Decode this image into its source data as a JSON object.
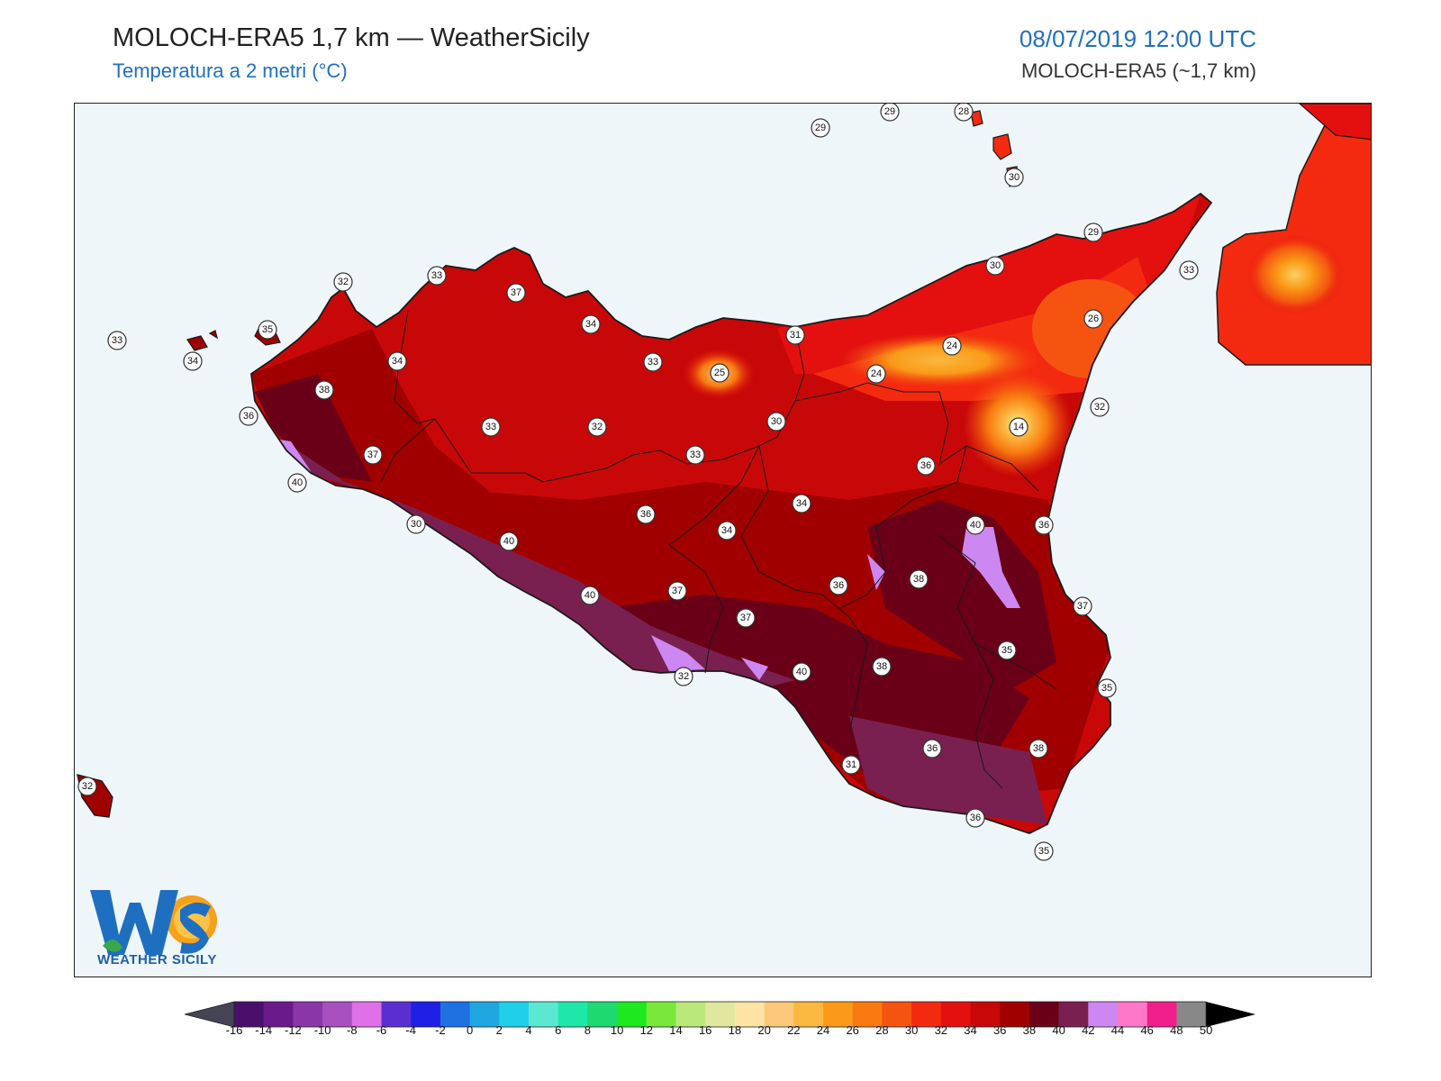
{
  "header": {
    "title": "MOLOCH-ERA5 1,7 km — WeatherSicily",
    "subtitle": "Temperatura a 2 metri (°C)",
    "datetime": "08/07/2019 12:00 UTC",
    "model": "MOLOCH-ERA5 (~1,7 km)"
  },
  "logo": {
    "text": "WEATHER SICILY",
    "mark": "WS"
  },
  "colors": {
    "sea": "#eef6fa",
    "outline": "#1a1a1a"
  },
  "colorbar": {
    "ticks": [
      "-16",
      "-14",
      "-12",
      "-10",
      "-8",
      "-6",
      "-4",
      "-2",
      "0",
      "2",
      "4",
      "6",
      "8",
      "10",
      "12",
      "14",
      "16",
      "18",
      "20",
      "22",
      "24",
      "26",
      "28",
      "30",
      "32",
      "34",
      "36",
      "38",
      "40",
      "42",
      "44",
      "46",
      "48",
      "50"
    ],
    "colors": [
      "#3a0a4a",
      "#4a0f6a",
      "#6a1a8a",
      "#8a35a8",
      "#a850c0",
      "#e070e8",
      "#5b2fcf",
      "#1f1fe6",
      "#1f70e0",
      "#1fa8e0",
      "#1fd0e8",
      "#5ce8d0",
      "#1ee8a8",
      "#1ed870",
      "#1ee81e",
      "#7ae83a",
      "#bbe87a",
      "#e0e8a0",
      "#fde3a4",
      "#fcc87a",
      "#fbb840",
      "#fa9a18",
      "#f87a10",
      "#f45410",
      "#f42a10",
      "#e41010",
      "#c80808",
      "#a00000",
      "#6a0018",
      "#7a2050",
      "#cc88f0",
      "#ff78c8",
      "#f01e8a",
      "#888888",
      "#444444"
    ]
  },
  "chart_data": {
    "type": "map",
    "title": "MOLOCH-ERA5 1,7 km — WeatherSicily",
    "variable": "Temperatura a 2 metri (°C)",
    "valid_time": "08/07/2019 12:00 UTC",
    "scale_min": -16,
    "scale_max": 50,
    "scale_step": 2,
    "station_values": [
      {
        "v": "29"
      },
      {
        "v": "29"
      },
      {
        "v": "28"
      },
      {
        "v": "30"
      },
      {
        "v": "29"
      },
      {
        "v": "30"
      },
      {
        "v": "33"
      },
      {
        "v": "33"
      },
      {
        "v": "37"
      },
      {
        "v": "32"
      },
      {
        "v": "34"
      },
      {
        "v": "33"
      },
      {
        "v": "35"
      },
      {
        "v": "34"
      },
      {
        "v": "34"
      },
      {
        "v": "38"
      },
      {
        "v": "36"
      },
      {
        "v": "37"
      },
      {
        "v": "40"
      },
      {
        "v": "33"
      },
      {
        "v": "33"
      },
      {
        "v": "25"
      },
      {
        "v": "31"
      },
      {
        "v": "24"
      },
      {
        "v": "24"
      },
      {
        "v": "26"
      },
      {
        "v": "32"
      },
      {
        "v": "14"
      },
      {
        "v": "32"
      },
      {
        "v": "30"
      },
      {
        "v": "33"
      },
      {
        "v": "36"
      },
      {
        "v": "34"
      },
      {
        "v": "36"
      },
      {
        "v": "34"
      },
      {
        "v": "30"
      },
      {
        "v": "40"
      },
      {
        "v": "40"
      },
      {
        "v": "36"
      },
      {
        "v": "40"
      },
      {
        "v": "37"
      },
      {
        "v": "36"
      },
      {
        "v": "38"
      },
      {
        "v": "37"
      },
      {
        "v": "37"
      },
      {
        "v": "35"
      },
      {
        "v": "32"
      },
      {
        "v": "40"
      },
      {
        "v": "38"
      },
      {
        "v": "35"
      },
      {
        "v": "31"
      },
      {
        "v": "36"
      },
      {
        "v": "38"
      },
      {
        "v": "36"
      },
      {
        "v": "35"
      },
      {
        "v": "32"
      }
    ]
  }
}
